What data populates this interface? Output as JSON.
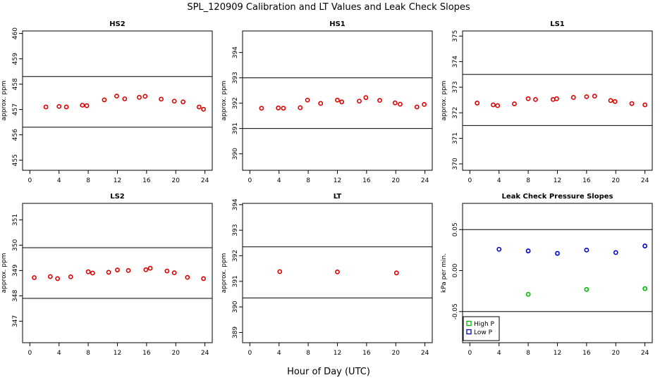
{
  "figure": {
    "title": "SPL_120909  Calibration and LT Values and Leak Check Slopes",
    "xlabel": "Hour of Day (UTC)"
  },
  "chart_data": [
    {
      "type": "scatter",
      "title": "HS2",
      "ylabel": "approx. ppm",
      "xlim": [
        -1,
        25
      ],
      "ylim": [
        454.6,
        460.1
      ],
      "xticks": [
        0,
        4,
        8,
        12,
        16,
        20,
        24
      ],
      "yticks": [
        455,
        456,
        457,
        458,
        459,
        460
      ],
      "hlines": [
        458.3,
        456.3
      ],
      "series": [
        {
          "color": "#dd0000",
          "points": [
            [
              2.2,
              457.1
            ],
            [
              4,
              457.12
            ],
            [
              5,
              457.1
            ],
            [
              7.2,
              457.17
            ],
            [
              7.8,
              457.15
            ],
            [
              10.2,
              457.38
            ],
            [
              11.9,
              457.53
            ],
            [
              13,
              457.42
            ],
            [
              15,
              457.48
            ],
            [
              15.8,
              457.52
            ],
            [
              18,
              457.41
            ],
            [
              19.8,
              457.33
            ],
            [
              21,
              457.3
            ],
            [
              23.2,
              457.1
            ],
            [
              23.8,
              457.01
            ]
          ]
        }
      ]
    },
    {
      "type": "scatter",
      "title": "HS1",
      "ylabel": "approx. ppm",
      "xlim": [
        -1,
        25
      ],
      "ylim": [
        389.35,
        394.85
      ],
      "xticks": [
        0,
        4,
        8,
        12,
        16,
        20,
        24
      ],
      "yticks": [
        390,
        391,
        392,
        393,
        394
      ],
      "hlines": [
        393,
        391
      ],
      "series": [
        {
          "color": "#dd0000",
          "points": [
            [
              1.6,
              391.8
            ],
            [
              3.9,
              391.81
            ],
            [
              4.6,
              391.8
            ],
            [
              6.9,
              391.82
            ],
            [
              7.9,
              392.12
            ],
            [
              9.7,
              391.99
            ],
            [
              12,
              392.12
            ],
            [
              12.6,
              392.05
            ],
            [
              15,
              392.08
            ],
            [
              15.9,
              392.22
            ],
            [
              17.8,
              392.11
            ],
            [
              19.9,
              392.01
            ],
            [
              20.6,
              391.96
            ],
            [
              22.9,
              391.85
            ],
            [
              23.9,
              391.95
            ]
          ]
        }
      ]
    },
    {
      "type": "scatter",
      "title": "LS1",
      "ylabel": "approx. ppm",
      "xlim": [
        -1,
        25
      ],
      "ylim": [
        369.75,
        375.2
      ],
      "xticks": [
        0,
        4,
        8,
        12,
        16,
        20,
        24
      ],
      "yticks": [
        370,
        371,
        372,
        373,
        374,
        375
      ],
      "hlines": [
        373.5,
        371.5
      ],
      "series": [
        {
          "color": "#dd0000",
          "points": [
            [
              1,
              372.38
            ],
            [
              3.2,
              372.31
            ],
            [
              3.8,
              372.28
            ],
            [
              6.1,
              372.35
            ],
            [
              8,
              372.55
            ],
            [
              9,
              372.52
            ],
            [
              11.4,
              372.52
            ],
            [
              11.9,
              372.55
            ],
            [
              14.2,
              372.6
            ],
            [
              16,
              372.63
            ],
            [
              17.1,
              372.65
            ],
            [
              19.3,
              372.48
            ],
            [
              19.9,
              372.44
            ],
            [
              22.2,
              372.36
            ],
            [
              24,
              372.31
            ]
          ]
        }
      ]
    },
    {
      "type": "scatter",
      "title": "LS2",
      "ylabel": "approx. ppm",
      "xlim": [
        -1,
        25
      ],
      "ylim": [
        346.15,
        351.65
      ],
      "xticks": [
        0,
        4,
        8,
        12,
        16,
        20,
        24
      ],
      "yticks": [
        347,
        348,
        349,
        350,
        351
      ],
      "hlines": [
        349.9,
        347.9
      ],
      "series": [
        {
          "color": "#dd0000",
          "points": [
            [
              0.6,
              348.72
            ],
            [
              2.8,
              348.76
            ],
            [
              3.8,
              348.68
            ],
            [
              5.6,
              348.75
            ],
            [
              8,
              348.95
            ],
            [
              8.6,
              348.9
            ],
            [
              10.8,
              348.93
            ],
            [
              12,
              349.02
            ],
            [
              13.5,
              349
            ],
            [
              15.9,
              349.03
            ],
            [
              16.5,
              349.09
            ],
            [
              18.8,
              348.98
            ],
            [
              19.8,
              348.91
            ],
            [
              21.6,
              348.73
            ],
            [
              23.8,
              348.68
            ]
          ]
        }
      ]
    },
    {
      "type": "scatter",
      "title": "LT",
      "ylabel": "approx. ppm",
      "xlim": [
        -1,
        25
      ],
      "ylim": [
        388.6,
        394.05
      ],
      "xticks": [
        0,
        4,
        8,
        12,
        16,
        20,
        24
      ],
      "yticks": [
        389,
        390,
        391,
        392,
        393,
        394
      ],
      "hlines": [
        392.35,
        390.35
      ],
      "series": [
        {
          "color": "#dd0000",
          "points": [
            [
              4.1,
              391.38
            ],
            [
              12,
              391.37
            ],
            [
              20.1,
              391.33
            ]
          ]
        }
      ]
    },
    {
      "type": "scatter",
      "title": "Leak Check Pressure Slopes",
      "ylabel": "kPa per min.",
      "xlim": [
        -1,
        25
      ],
      "ylim": [
        -0.088,
        0.082
      ],
      "xticks": [
        0,
        4,
        8,
        12,
        16,
        20,
        24
      ],
      "yticks": [
        -0.05,
        0,
        0.05
      ],
      "ytick_labels": [
        "-0.05",
        "0.00",
        "0.05"
      ],
      "hlines": [
        0.05,
        -0.05
      ],
      "legend": "bottom-left",
      "series": [
        {
          "name": "High P",
          "color": "#00bb00",
          "points": [
            [
              8,
              -0.029
            ],
            [
              16,
              -0.023
            ],
            [
              24,
              -0.022
            ]
          ]
        },
        {
          "name": "Low P",
          "color": "#0000cc",
          "points": [
            [
              4,
              0.026
            ],
            [
              8,
              0.024
            ],
            [
              12,
              0.021
            ],
            [
              16,
              0.025
            ],
            [
              20,
              0.022
            ],
            [
              24,
              0.03
            ]
          ]
        }
      ]
    }
  ]
}
